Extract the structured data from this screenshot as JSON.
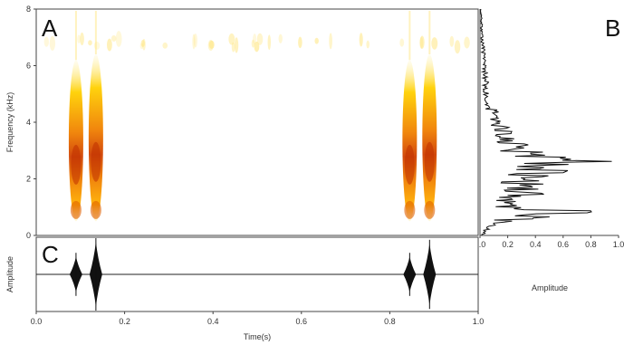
{
  "chart_data": [
    {
      "panel_label": "A",
      "type": "heatmap",
      "xlabel": "",
      "ylabel": "Frequency (kHz)",
      "xlim": [
        0.0,
        1.0
      ],
      "ylim": [
        0,
        8
      ],
      "yticks": [
        "0",
        "2",
        "4",
        "6",
        "8"
      ],
      "colormap": [
        "#ffffff",
        "#fff3b0",
        "#ffd000",
        "#f08000",
        "#b02000"
      ],
      "calls": [
        {
          "time": 0.09,
          "freq_low": 0.5,
          "freq_high": 6.2,
          "peak_freq": 2.5
        },
        {
          "time": 0.135,
          "freq_low": 0.5,
          "freq_high": 6.4,
          "peak_freq": 2.6
        },
        {
          "time": 0.845,
          "freq_low": 0.5,
          "freq_high": 6.2,
          "peak_freq": 2.5
        },
        {
          "time": 0.89,
          "freq_low": 0.5,
          "freq_high": 6.4,
          "peak_freq": 2.6
        }
      ],
      "noise_band_freq": 6.8
    },
    {
      "panel_label": "B",
      "type": "line",
      "xlabel": "Amplitude",
      "ylabel": "",
      "xlim": [
        0.0,
        1.0
      ],
      "ylim": [
        0,
        8
      ],
      "xticks": [
        "0.0",
        "0.2",
        "0.4",
        "0.6",
        "0.8",
        "1.0"
      ],
      "series": [
        {
          "freq": [
            0,
            0.2,
            0.4,
            0.6,
            0.8,
            0.85,
            0.9,
            1.0,
            1.2,
            1.4,
            1.6,
            1.8,
            2.0,
            2.2,
            2.4,
            2.5,
            2.6,
            2.7,
            2.8,
            3.0,
            3.2,
            3.4,
            3.6,
            3.8,
            4.0,
            4.2,
            4.5,
            5.0,
            5.5,
            6.0,
            6.5,
            7.0,
            7.5,
            8.0
          ],
          "amplitude": [
            0.02,
            0.05,
            0.1,
            0.35,
            0.7,
            0.95,
            0.5,
            0.25,
            0.3,
            0.4,
            0.35,
            0.45,
            0.3,
            0.5,
            0.55,
            0.9,
            0.8,
            0.7,
            0.45,
            0.35,
            0.3,
            0.25,
            0.2,
            0.18,
            0.15,
            0.12,
            0.1,
            0.07,
            0.05,
            0.04,
            0.03,
            0.02,
            0.015,
            0.01
          ]
        }
      ]
    },
    {
      "panel_label": "C",
      "type": "line",
      "xlabel": "Time(s)",
      "ylabel": "Amplitude",
      "xlim": [
        0.0,
        1.0
      ],
      "xticks": [
        "0.0",
        "0.2",
        "0.4",
        "0.6",
        "0.8",
        "1.0"
      ],
      "bursts": [
        {
          "time": 0.09,
          "amplitude": 0.55
        },
        {
          "time": 0.135,
          "amplitude": 1.0
        },
        {
          "time": 0.845,
          "amplitude": 0.55
        },
        {
          "time": 0.89,
          "amplitude": 0.95
        }
      ]
    }
  ]
}
